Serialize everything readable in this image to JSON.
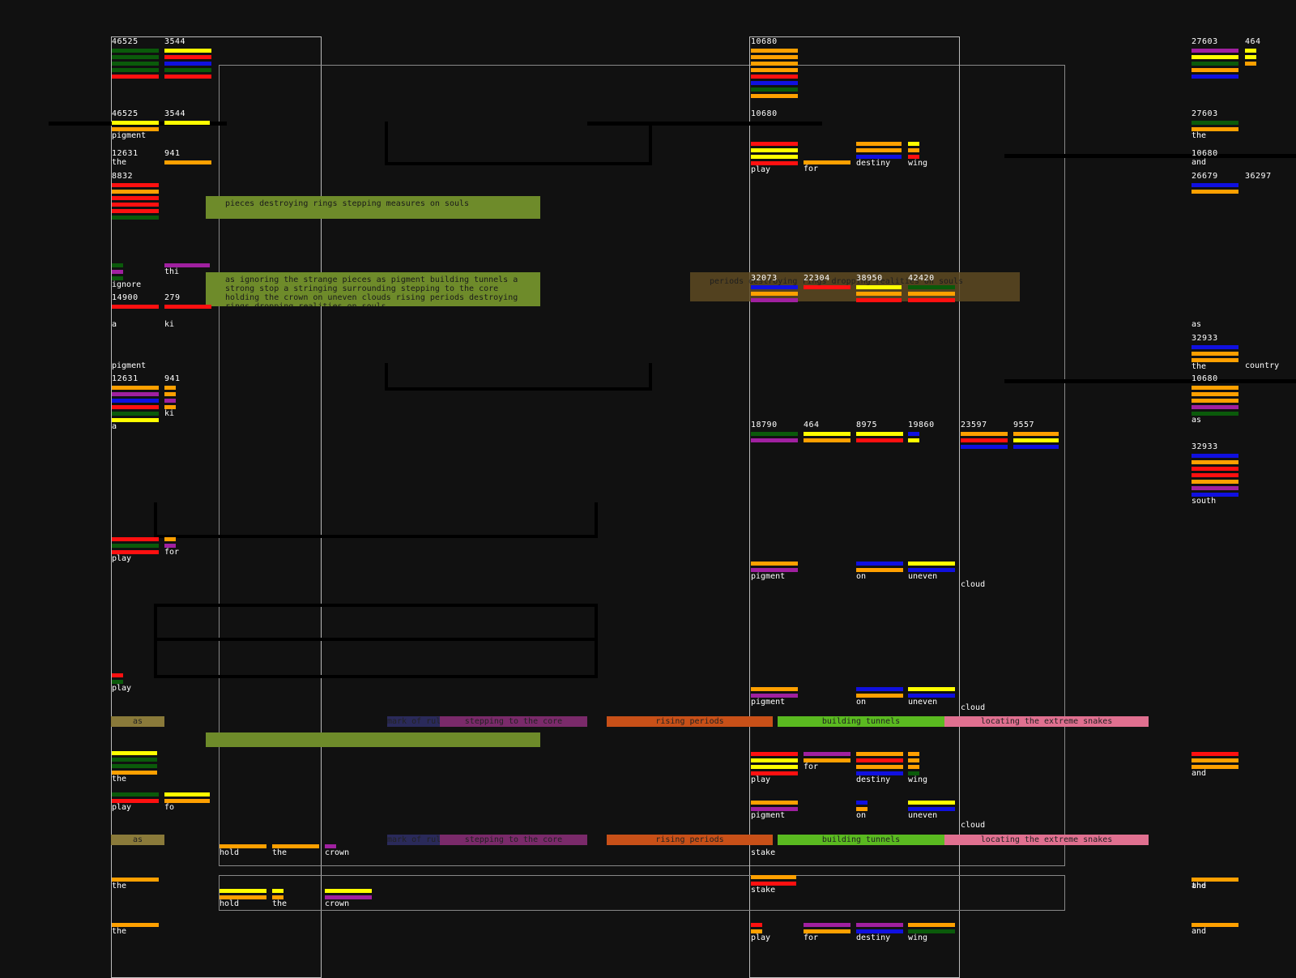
{
  "palette": {
    "yellow": "#ffff00",
    "orange": "#ffa000",
    "red": "#ff1010",
    "blue": "#1010e0",
    "purple": "#a020a0",
    "green": "#0a5a0a",
    "panel_green": "#6e8b2a",
    "band_colors": [
      "#8a7a3a",
      "#2a2a5a",
      "#7a2a6a",
      "#c85018",
      "#5aba20",
      "#e07090"
    ]
  },
  "cells": [
    {
      "num": "46525",
      "word": "",
      "bars": [
        "green",
        "green",
        "green",
        "green",
        "red"
      ]
    },
    {
      "num": "3544",
      "word": "",
      "bars": [
        "yellow",
        "red",
        "blue",
        "green",
        "red"
      ]
    },
    {
      "num": "10680",
      "word": "",
      "bars": [
        "orange",
        "orange",
        "orange",
        "orange",
        "red",
        "blue",
        "green",
        "orange"
      ]
    },
    {
      "num": "27603",
      "word": "",
      "bars": [
        "purple",
        "yellow",
        "green",
        "orange",
        "blue"
      ]
    },
    {
      "num": "464",
      "word": "",
      "bars": [
        "yellow",
        "yellow",
        "orange"
      ]
    },
    {
      "num": "46525",
      "word": "pigment",
      "bars": [
        "yellow",
        "orange"
      ]
    },
    {
      "num": "3544",
      "word": "",
      "bars": [
        "yellow"
      ]
    },
    {
      "num": "10680",
      "word": "",
      "bars": []
    },
    {
      "num": "27603",
      "word": "the",
      "bars": [
        "green",
        "orange"
      ]
    },
    {
      "num": "12631",
      "word": "the",
      "bars": []
    },
    {
      "num": "941",
      "word": "",
      "bars": [
        "orange"
      ]
    },
    {
      "num": "",
      "word": "play",
      "bars": [
        "red",
        "yellow",
        "yellow",
        "red"
      ]
    },
    {
      "num": "",
      "word": "for",
      "bars": [
        "orange"
      ]
    },
    {
      "num": "",
      "word": "destiny",
      "bars": [
        "orange",
        "orange",
        "blue"
      ]
    },
    {
      "num": "",
      "word": "wing",
      "bars": [
        "yellow",
        "orange",
        "red"
      ]
    },
    {
      "num": "10680",
      "word": "and",
      "bars": []
    },
    {
      "num": "8832",
      "word": "",
      "bars": [
        "red",
        "orange",
        "red",
        "red",
        "red",
        "green"
      ]
    },
    {
      "num": "26679",
      "word": "",
      "bars": [
        "blue",
        "orange"
      ]
    },
    {
      "num": "36297",
      "word": "",
      "bars": []
    },
    {
      "num": "",
      "word": "ignore",
      "bars": [
        "green",
        "purple",
        "green"
      ]
    },
    {
      "num": "",
      "word": "thi",
      "bars": [
        "purple"
      ]
    },
    {
      "num": "14900",
      "word": "",
      "bars": [
        "red"
      ]
    },
    {
      "num": "279",
      "word": "",
      "bars": [
        "red"
      ]
    },
    {
      "num": "",
      "word": "a",
      "bars": []
    },
    {
      "num": "",
      "word": "ki",
      "bars": []
    },
    {
      "num": "32073",
      "word": "",
      "bars": [
        "blue",
        "orange",
        "purple"
      ]
    },
    {
      "num": "22304",
      "word": "",
      "bars": [
        "red"
      ]
    },
    {
      "num": "38950",
      "word": "",
      "bars": [
        "yellow",
        "orange",
        "red"
      ]
    },
    {
      "num": "42420",
      "word": "",
      "bars": [
        "green",
        "orange",
        "red"
      ]
    },
    {
      "num": "",
      "word": "as",
      "bars": []
    },
    {
      "num": "32933",
      "word": "the",
      "bars": [
        "blue",
        "orange",
        "orange"
      ]
    },
    {
      "num": "",
      "word": "country",
      "bars": []
    },
    {
      "num": "",
      "word": "pigment",
      "bars": []
    },
    {
      "num": "12631",
      "word": "a",
      "bars": [
        "orange",
        "purple",
        "blue",
        "red",
        "green",
        "yellow"
      ]
    },
    {
      "num": "941",
      "word": "ki",
      "bars": [
        "orange",
        "orange",
        "purple",
        "orange"
      ]
    },
    {
      "num": "10680",
      "word": "as",
      "bars": [
        "orange",
        "orange",
        "orange",
        "purple",
        "green"
      ]
    },
    {
      "num": "18790",
      "word": "",
      "bars": [
        "green",
        "purple"
      ]
    },
    {
      "num": "464",
      "word": "",
      "bars": [
        "yellow",
        "orange"
      ]
    },
    {
      "num": "8975",
      "word": "",
      "bars": [
        "yellow",
        "red"
      ]
    },
    {
      "num": "19860",
      "word": "",
      "bars": [
        "blue",
        "yellow"
      ]
    },
    {
      "num": "23597",
      "word": "",
      "bars": [
        "orange",
        "red",
        "blue"
      ]
    },
    {
      "num": "9557",
      "word": "",
      "bars": [
        "orange",
        "yellow",
        "blue"
      ]
    },
    {
      "num": "32933",
      "word": "south",
      "bars": [
        "blue",
        "orange",
        "red",
        "red",
        "orange",
        "purple",
        "blue"
      ]
    },
    {
      "num": "",
      "word": "play",
      "bars": [
        "red",
        "green",
        "red"
      ]
    },
    {
      "num": "",
      "word": "for",
      "bars": [
        "orange",
        "purple"
      ]
    },
    {
      "num": "",
      "word": "pigment",
      "bars": [
        "orange",
        "purple"
      ]
    },
    {
      "num": "",
      "word": "on",
      "bars": [
        "blue",
        "orange"
      ]
    },
    {
      "num": "",
      "word": "uneven",
      "bars": [
        "yellow",
        "blue"
      ]
    },
    {
      "num": "",
      "word": "cloud",
      "bars": []
    },
    {
      "num": "",
      "word": "play",
      "bars": [
        "red",
        "green"
      ]
    },
    {
      "num": "",
      "word": "the",
      "bars": [
        "orange"
      ]
    },
    {
      "num": "",
      "word": "pigment",
      "bars": [
        "orange",
        "purple"
      ]
    },
    {
      "num": "",
      "word": "on",
      "bars": [
        "blue",
        "orange"
      ]
    },
    {
      "num": "",
      "word": "uneven",
      "bars": [
        "yellow",
        "blue"
      ]
    },
    {
      "num": "",
      "word": "cloud",
      "bars": []
    },
    {
      "num": "",
      "word": "the",
      "bars": [
        "yellow",
        "green",
        "green",
        "orange"
      ]
    },
    {
      "num": "",
      "word": "play",
      "bars": [
        "red",
        "yellow",
        "yellow",
        "red"
      ]
    },
    {
      "num": "",
      "word": "for",
      "bars": [
        "purple",
        "orange"
      ]
    },
    {
      "num": "",
      "word": "destiny",
      "bars": [
        "orange",
        "red",
        "orange",
        "blue"
      ]
    },
    {
      "num": "",
      "word": "wing",
      "bars": [
        "orange",
        "orange",
        "orange",
        "green"
      ]
    },
    {
      "num": "",
      "word": "and",
      "bars": [
        "red",
        "orange",
        "orange"
      ]
    },
    {
      "num": "",
      "word": "play",
      "bars": [
        "green",
        "red"
      ]
    },
    {
      "num": "",
      "word": "fo",
      "bars": [
        "yellow",
        "orange"
      ]
    },
    {
      "num": "",
      "word": "pigment",
      "bars": [
        "orange",
        "purple"
      ]
    },
    {
      "num": "",
      "word": "on",
      "bars": [
        "blue",
        "orange"
      ]
    },
    {
      "num": "",
      "word": "uneven",
      "bars": [
        "yellow",
        "blue"
      ]
    },
    {
      "num": "",
      "word": "cloud",
      "bars": []
    },
    {
      "num": "",
      "word": "hold",
      "bars": [
        "orange"
      ]
    },
    {
      "num": "",
      "word": "the",
      "bars": [
        "orange"
      ]
    },
    {
      "num": "",
      "word": "crown",
      "bars": [
        "purple"
      ]
    },
    {
      "num": "",
      "word": "stake",
      "bars": []
    },
    {
      "num": "",
      "word": "the",
      "bars": [
        "orange"
      ]
    },
    {
      "num": "",
      "word": "and",
      "bars": [
        "orange"
      ]
    },
    {
      "num": "",
      "word": "hold",
      "bars": [
        "yellow",
        "orange"
      ]
    },
    {
      "num": "",
      "word": "the",
      "bars": [
        "yellow",
        "orange"
      ]
    },
    {
      "num": "",
      "word": "crown",
      "bars": [
        "yellow",
        "purple"
      ]
    },
    {
      "num": "",
      "word": "stake",
      "bars": [
        "orange",
        "red"
      ]
    },
    {
      "num": "",
      "word": "the",
      "bars": [
        "orange"
      ]
    },
    {
      "num": "",
      "word": "and",
      "bars": [
        "orange"
      ]
    },
    {
      "num": "",
      "word": "play",
      "bars": [
        "red",
        "orange"
      ]
    },
    {
      "num": "",
      "word": "for",
      "bars": [
        "purple",
        "orange"
      ]
    },
    {
      "num": "",
      "word": "destiny",
      "bars": [
        "purple",
        "blue"
      ]
    },
    {
      "num": "",
      "word": "wing",
      "bars": [
        "orange",
        "green"
      ]
    }
  ],
  "panels": {
    "green_1": "pieces destroying rings stepping measures on souls",
    "green_2": "as ignoring the strange pieces as pigment building tunnels a strong stop a stringing surrounding stepping to the core holding the crown on uneven clouds rising periods destroying rings dropping realities on souls",
    "olive_1": "periods destroying rings dropping realities on souls"
  },
  "bands": [
    {
      "label": "as"
    },
    {
      "label": "mark of ruler"
    },
    {
      "label": "stepping to the core"
    },
    {
      "label": "rising periods"
    },
    {
      "label": "building tunnels"
    },
    {
      "label": "locating the extreme snakes"
    }
  ]
}
